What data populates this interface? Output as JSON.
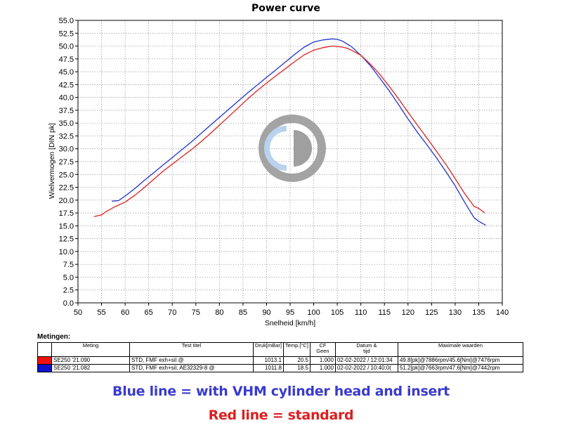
{
  "chart_data": {
    "type": "line",
    "title": "Power curve",
    "xlabel": "Snelheid [km/h]",
    "ylabel": "Wielvermogen [DIN pk]",
    "xlim": [
      50,
      140
    ],
    "ylim": [
      0,
      55
    ],
    "xticks": [
      "50",
      "55",
      "60",
      "65",
      "70",
      "75",
      "80",
      "85",
      "90",
      "95",
      "100",
      "105",
      "110",
      "115",
      "120",
      "125",
      "130",
      "135",
      "140"
    ],
    "yticks": [
      "0.0",
      "2.5",
      "5.0",
      "7.5",
      "10.0",
      "12.5",
      "15.0",
      "17.5",
      "20.0",
      "22.5",
      "25.0",
      "27.5",
      "30.0",
      "32.5",
      "35.0",
      "37.5",
      "40.0",
      "42.5",
      "45.0",
      "47.5",
      "50.0",
      "52.5",
      "55.0"
    ],
    "grid": true,
    "series": [
      {
        "name": "SE250 '21.082",
        "color": "#2233cc",
        "x": [
          57.2,
          58.6,
          60,
          62,
          64,
          66,
          68,
          70,
          72,
          74,
          76,
          78,
          80,
          82,
          84,
          86,
          88,
          90,
          92,
          94,
          96,
          98,
          100,
          102,
          104,
          105,
          106,
          108,
          110,
          112,
          114,
          116,
          118,
          120,
          122,
          124,
          126,
          128,
          130,
          132,
          134,
          135,
          136.5
        ],
        "y": [
          19.8,
          19.9,
          20.8,
          22.2,
          23.8,
          25.3,
          26.8,
          28.3,
          29.8,
          31.3,
          32.9,
          34.5,
          36.1,
          37.7,
          39.3,
          40.9,
          42.4,
          43.9,
          45.4,
          46.9,
          48.4,
          49.8,
          50.8,
          51.2,
          51.4,
          51.3,
          51.0,
          49.9,
          48.2,
          46.2,
          43.8,
          41.3,
          38.6,
          35.8,
          33.2,
          30.8,
          28.3,
          25.6,
          22.8,
          19.6,
          16.6,
          15.9,
          15.1
        ]
      },
      {
        "name": "SE250 '21.090",
        "color": "#dd2222",
        "x": [
          53.4,
          54.4,
          55,
          56,
          58,
          60,
          62,
          64,
          66,
          68,
          70,
          72,
          74,
          76,
          78,
          80,
          82,
          84,
          86,
          88,
          90,
          92,
          94,
          96,
          98,
          100,
          102,
          104,
          106,
          107,
          108,
          110,
          112,
          114,
          116,
          118,
          120,
          122,
          124,
          126,
          128,
          130,
          132,
          134,
          135,
          136.3
        ],
        "y": [
          16.8,
          17.0,
          17.1,
          17.8,
          18.8,
          19.6,
          20.9,
          22.4,
          24.0,
          25.6,
          27.0,
          28.4,
          29.8,
          31.3,
          32.9,
          34.6,
          36.3,
          38.0,
          39.7,
          41.3,
          42.8,
          44.2,
          45.6,
          47.0,
          48.3,
          49.2,
          49.7,
          50.0,
          49.8,
          49.6,
          49.2,
          48.2,
          46.5,
          44.5,
          42.2,
          39.7,
          37.1,
          34.6,
          32.1,
          29.6,
          27.0,
          24.2,
          21.3,
          18.8,
          18.4,
          17.5
        ]
      }
    ]
  },
  "measurements": {
    "title": "Metingen:",
    "headers": {
      "meting": "Meting",
      "test_titel": "Test titel",
      "druk": "Druk[mBar]",
      "temp": "Temp.[°C]",
      "cf": [
        "CF",
        "Geen"
      ],
      "datum": [
        "Datum &",
        "tijd"
      ],
      "max": "Maximale waarden"
    },
    "rows": [
      {
        "color": "#ee1111",
        "meting": "SE250 '21.090",
        "test_titel": "STD, FMF exh+sil  @",
        "druk": "1013.1",
        "temp": "20.5",
        "cf": "1.000",
        "datum": "02-02-2022 / 12:01:34",
        "max": "49.8[pk]@7886rpm/45.6[Nm]@7476rpm"
      },
      {
        "color": "#1111cc",
        "meting": "SE250 '21.082",
        "test_titel": "STD, FMF exh+sil, AE32329-8  @",
        "druk": "1011.8",
        "temp": "18.5",
        "cf": "1.000",
        "datum": "02-02-2022 / 10:40:0(",
        "max": "51.2[pk]@7663rpm/47.6[Nm]@7442rpm"
      }
    ]
  },
  "captions": {
    "blue": "Blue line = with VHM cylinder head and insert",
    "blue_color": "#3a3acc",
    "red": "Red line = standard",
    "red_color": "#dd1e1e"
  },
  "watermark": {
    "icon": "cd-logo-icon",
    "ring_color": "#9a9a9a",
    "accent_color": "#b9d3ee"
  }
}
